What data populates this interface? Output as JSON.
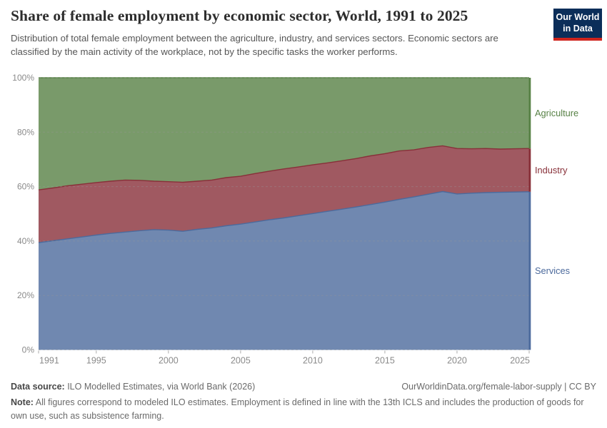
{
  "header": {
    "title": "Share of female employment by economic sector, World, 1991 to 2025",
    "subtitle": "Distribution of total female employment between the agriculture, industry, and services sectors. Economic sectors are classified by the main activity of the workplace, not by the specific tasks the worker performs.",
    "logo_line1": "Our World",
    "logo_line2": "in Data",
    "logo_bg": "#0b2e59",
    "logo_accent": "#cf241d"
  },
  "chart_data": {
    "type": "area",
    "stacked": true,
    "unit": "%",
    "title": "Share of female employment by economic sector, World, 1991 to 2025",
    "x": [
      1991,
      1992,
      1993,
      1994,
      1995,
      1996,
      1997,
      1998,
      1999,
      2000,
      2001,
      2002,
      2003,
      2004,
      2005,
      2006,
      2007,
      2008,
      2009,
      2010,
      2011,
      2012,
      2013,
      2014,
      2015,
      2016,
      2017,
      2018,
      2019,
      2020,
      2021,
      2022,
      2023,
      2024,
      2025
    ],
    "series": [
      {
        "name": "Services",
        "color": "#4C6A9C",
        "values": [
          39.4,
          40.1,
          40.8,
          41.5,
          42.2,
          42.8,
          43.3,
          43.8,
          44.2,
          44.0,
          43.6,
          44.3,
          44.8,
          45.6,
          46.2,
          47.0,
          47.8,
          48.5,
          49.3,
          50.1,
          50.9,
          51.7,
          52.5,
          53.4,
          54.3,
          55.3,
          56.2,
          57.2,
          58.2,
          57.3,
          57.6,
          57.8,
          57.9,
          58.0,
          58.1
        ]
      },
      {
        "name": "Industry",
        "color": "#883039",
        "values": [
          19.4,
          19.4,
          19.5,
          19.4,
          19.3,
          19.2,
          19.1,
          18.5,
          17.8,
          17.8,
          18.0,
          17.7,
          17.6,
          17.7,
          17.6,
          17.8,
          17.9,
          18.0,
          17.9,
          17.9,
          17.8,
          17.8,
          17.8,
          17.9,
          17.8,
          17.8,
          17.3,
          17.2,
          16.8,
          16.7,
          16.3,
          16.2,
          15.9,
          15.9,
          15.9
        ]
      },
      {
        "name": "Agriculture",
        "color": "#578145",
        "values": [
          41.2,
          40.5,
          39.7,
          39.1,
          38.5,
          38.0,
          37.6,
          37.7,
          38.0,
          38.2,
          38.4,
          38.0,
          37.6,
          36.7,
          36.2,
          35.2,
          34.3,
          33.5,
          32.8,
          32.0,
          31.3,
          30.5,
          29.7,
          28.7,
          27.9,
          26.9,
          26.5,
          25.6,
          25.0,
          26.0,
          26.1,
          26.0,
          26.2,
          26.1,
          26.0
        ]
      }
    ],
    "ylim": [
      0,
      100
    ],
    "ytick_labels": [
      "0%",
      "20%",
      "40%",
      "60%",
      "80%",
      "100%"
    ],
    "ytick_values": [
      0,
      20,
      40,
      60,
      80,
      100
    ],
    "xtick_values": [
      1991,
      1995,
      2000,
      2005,
      2010,
      2015,
      2020,
      2025
    ],
    "grid": "horizontal dashed",
    "legend_position": "right inline labels",
    "fill_opacity": 0.8,
    "axis_text_color": "#8a8a8a"
  },
  "footer": {
    "source_label": "Data source:",
    "source_text": " ILO Modelled Estimates, via World Bank (2026)",
    "attribution": "OurWorldinData.org/female-labor-supply | CC BY",
    "note_label": "Note:",
    "note_text": " All figures correspond to modeled ILO estimates. Employment is defined in line with the 13th ICLS and includes the production of goods for own use, such as subsistence farming."
  }
}
